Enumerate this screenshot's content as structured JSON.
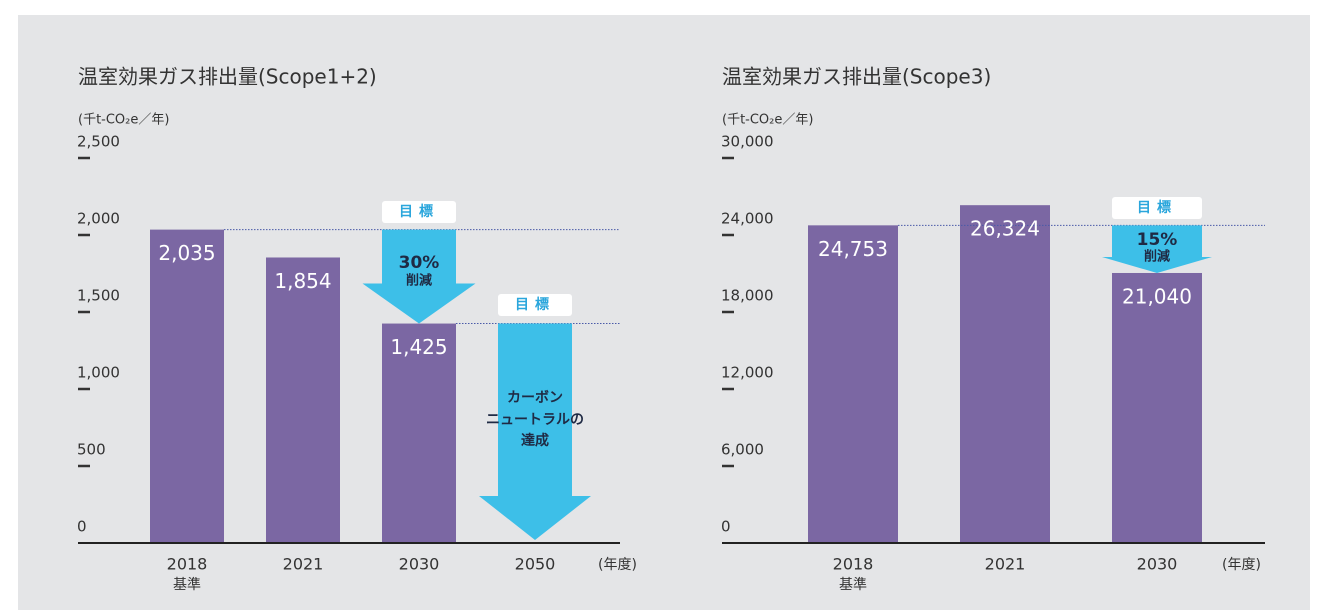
{
  "chart_data": [
    {
      "type": "bar",
      "title": "温室効果ガス排出量(Scope1+2)",
      "y_label": "(千t-CO₂e／年)",
      "x_label": "(年度)",
      "categories": [
        "2018",
        "2021",
        "2030",
        "2050"
      ],
      "category_notes": [
        "基準",
        null,
        null,
        null
      ],
      "values": [
        2035,
        1854,
        1425,
        null
      ],
      "value_labels": [
        "2,035",
        "1,854",
        "1,425",
        null
      ],
      "color": "#7b67a3",
      "ylim": [
        0,
        2500
      ],
      "yticks": [
        0,
        500,
        {
          "value": 1000,
          "label": "1,000"
        },
        {
          "value": 1500,
          "label": "1,500"
        },
        {
          "value": 2000,
          "label": "2,000"
        },
        {
          "value": 2500,
          "label": "2,500"
        }
      ],
      "annotations": [
        {
          "tag": "目標",
          "lines": [
            "30%",
            "削減"
          ]
        },
        {
          "tag": "目標",
          "lines": [
            "カーボン",
            "ニュートラルの",
            "達成"
          ]
        }
      ]
    },
    {
      "type": "bar",
      "title": "温室効果ガス排出量(Scope3)",
      "y_label": "(千t-CO₂e／年)",
      "x_label": "(年度)",
      "categories": [
        "2018",
        "2021",
        "2030"
      ],
      "category_notes": [
        "基準",
        null,
        null
      ],
      "values": [
        24753,
        26324,
        21040
      ],
      "value_labels": [
        "24,753",
        "26,324",
        "21,040"
      ],
      "color": "#7b67a3",
      "ylim": [
        0,
        30000
      ],
      "yticks": [
        0,
        {
          "value": 6000,
          "label": "6,000"
        },
        {
          "value": 12000,
          "label": "12,000"
        },
        {
          "value": 18000,
          "label": "18,000"
        },
        {
          "value": 24000,
          "label": "24,000"
        },
        {
          "value": 30000,
          "label": "30,000"
        }
      ],
      "annotations": [
        {
          "tag": "目標",
          "lines": [
            "15%",
            "削減"
          ]
        }
      ]
    }
  ]
}
